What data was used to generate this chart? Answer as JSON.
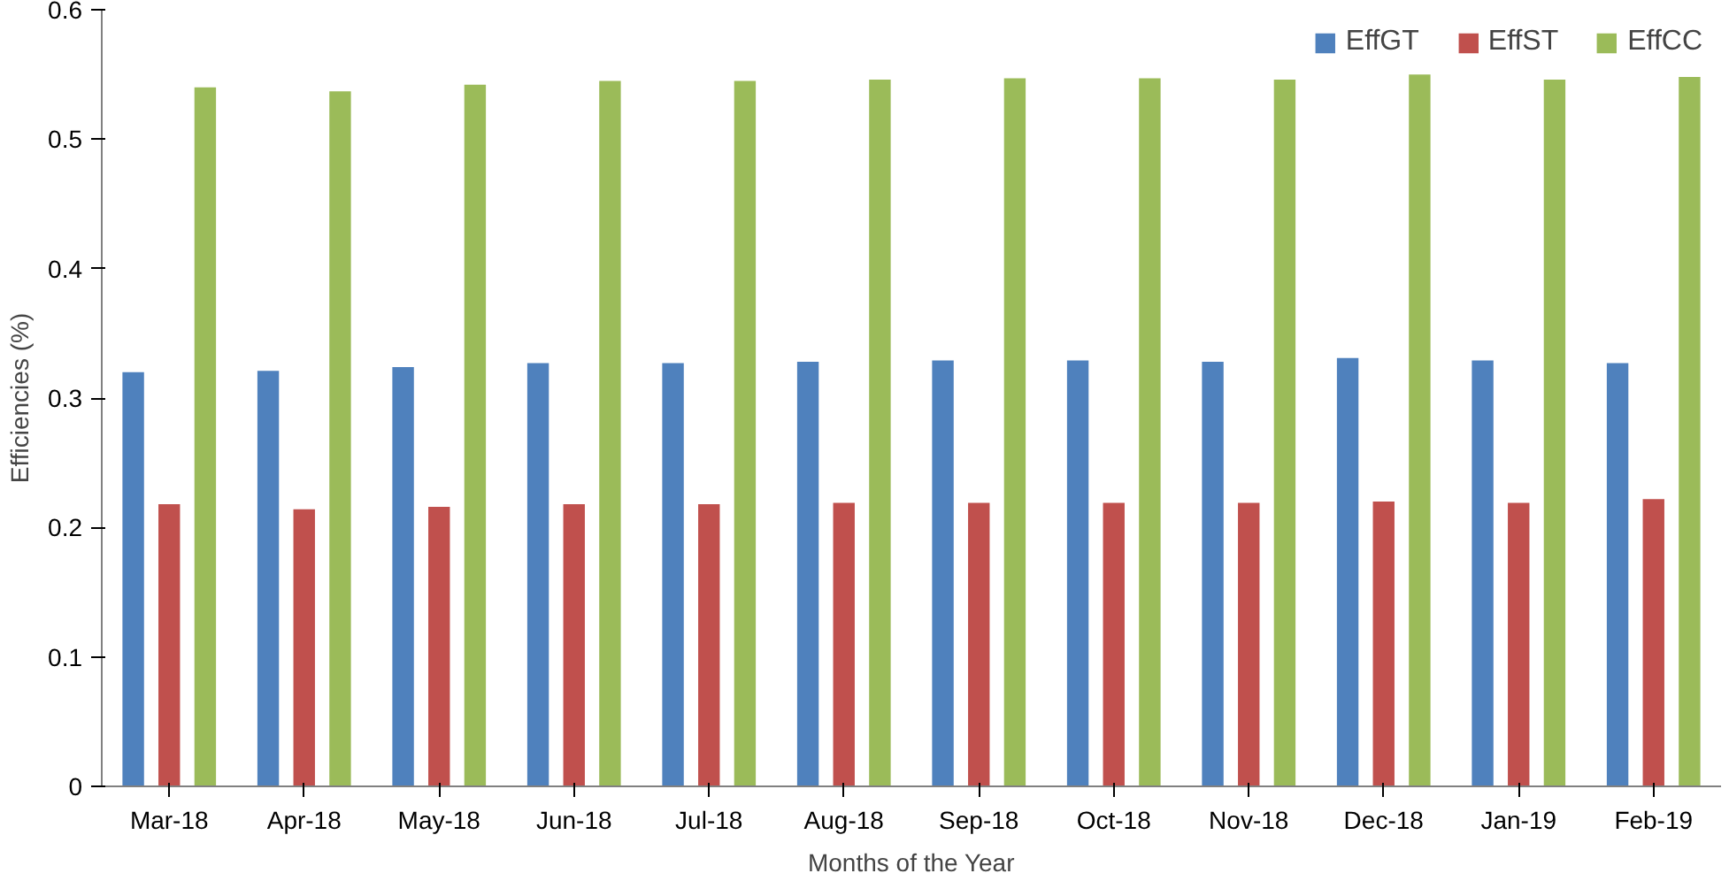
{
  "chart_data": {
    "type": "bar",
    "xlabel": "Months of the Year",
    "ylabel": "Efficiencies (%)",
    "categories": [
      "Mar-18",
      "Apr-18",
      "May-18",
      "Jun-18",
      "Jul-18",
      "Aug-18",
      "Sep-18",
      "Oct-18",
      "Nov-18",
      "Dec-18",
      "Jan-19",
      "Feb-19"
    ],
    "series": [
      {
        "name": "EffGT",
        "color": "#4f81bd",
        "values": [
          0.32,
          0.321,
          0.324,
          0.327,
          0.327,
          0.328,
          0.329,
          0.329,
          0.328,
          0.331,
          0.329,
          0.327
        ]
      },
      {
        "name": "EffST",
        "color": "#c0504d",
        "values": [
          0.218,
          0.214,
          0.216,
          0.218,
          0.218,
          0.219,
          0.219,
          0.219,
          0.219,
          0.22,
          0.219,
          0.222
        ]
      },
      {
        "name": "EffCC",
        "color": "#9bbb59",
        "values": [
          0.54,
          0.537,
          0.542,
          0.545,
          0.545,
          0.546,
          0.547,
          0.547,
          0.546,
          0.55,
          0.546,
          0.548
        ]
      }
    ],
    "ylim": [
      0,
      0.6
    ],
    "yticks": [
      0,
      0.1,
      0.2,
      0.3,
      0.4,
      0.5,
      0.6
    ],
    "grid": false,
    "legend": "top right"
  }
}
